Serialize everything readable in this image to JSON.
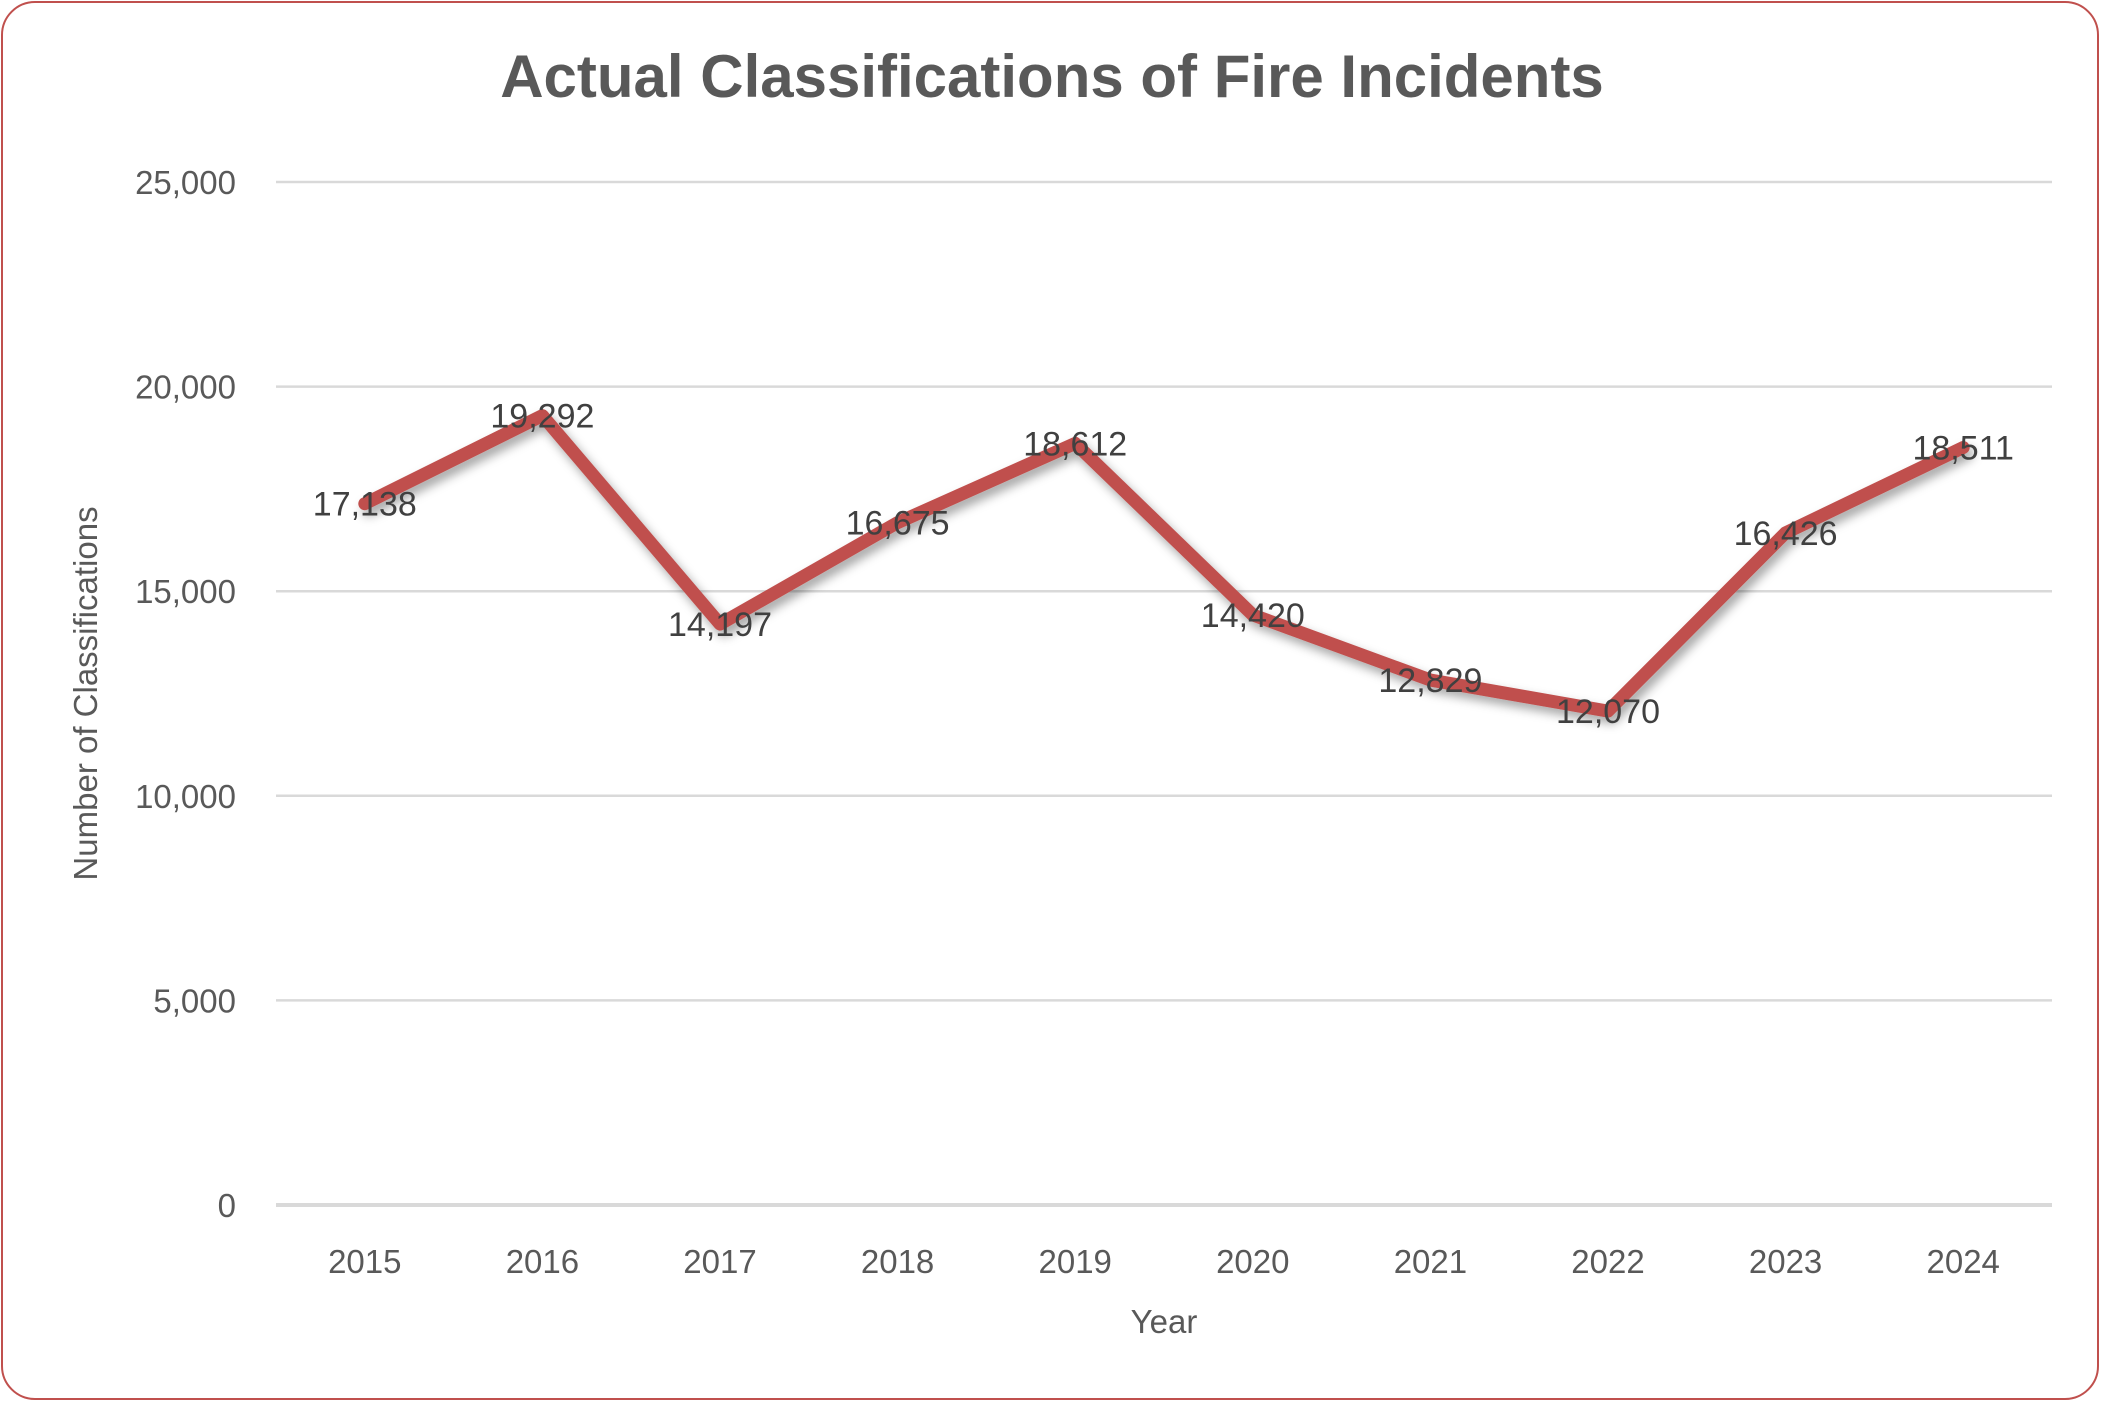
{
  "chart_data": {
    "type": "line",
    "title": "Actual Classifications of Fire Incidents",
    "xlabel": "Year",
    "ylabel": "Number of Classifications",
    "categories": [
      "2015",
      "2016",
      "2017",
      "2018",
      "2019",
      "2020",
      "2021",
      "2022",
      "2023",
      "2024"
    ],
    "series": [
      {
        "name": "Actual Classifications",
        "color": "#c0504d",
        "values": [
          17138,
          19292,
          14197,
          16675,
          18612,
          14420,
          12829,
          12070,
          16426,
          18511
        ],
        "labels": [
          "17,138",
          "19,292",
          "14,197",
          "16,675",
          "18,612",
          "14,420",
          "12,829",
          "12,070",
          "16,426",
          "18,511"
        ]
      }
    ],
    "ylim": [
      0,
      25000
    ],
    "yticks": [
      0,
      5000,
      10000,
      15000,
      20000,
      25000
    ],
    "ytick_labels": [
      "0",
      "5,000",
      "10,000",
      "15,000",
      "20,000",
      "25,000"
    ],
    "grid": true,
    "legend": "none"
  },
  "colors": {
    "line": "#c0504d",
    "border": "#c0504d",
    "grid": "#d9d9d9",
    "text": "#595959"
  }
}
